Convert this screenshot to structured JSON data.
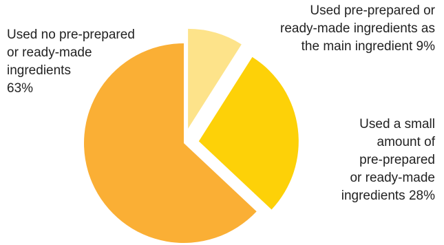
{
  "chart_data": {
    "type": "pie",
    "title": "",
    "slices": [
      {
        "value": 63,
        "color": "#FAAF35",
        "label_lines": [
          "Used no pre-prepared",
          "or ready-made",
          "ingredients",
          "63%"
        ]
      },
      {
        "value": 28,
        "color": "#FDD108",
        "label_lines": [
          "Used a small",
          "amount of",
          "pre-prepared",
          "or ready-made",
          "ingredients 28%"
        ]
      },
      {
        "value": 9,
        "color": "#FDE38A",
        "label_lines": [
          "Used pre-prepared or",
          "ready-made ingredients as",
          "the main ingredient 9%"
        ]
      }
    ]
  }
}
